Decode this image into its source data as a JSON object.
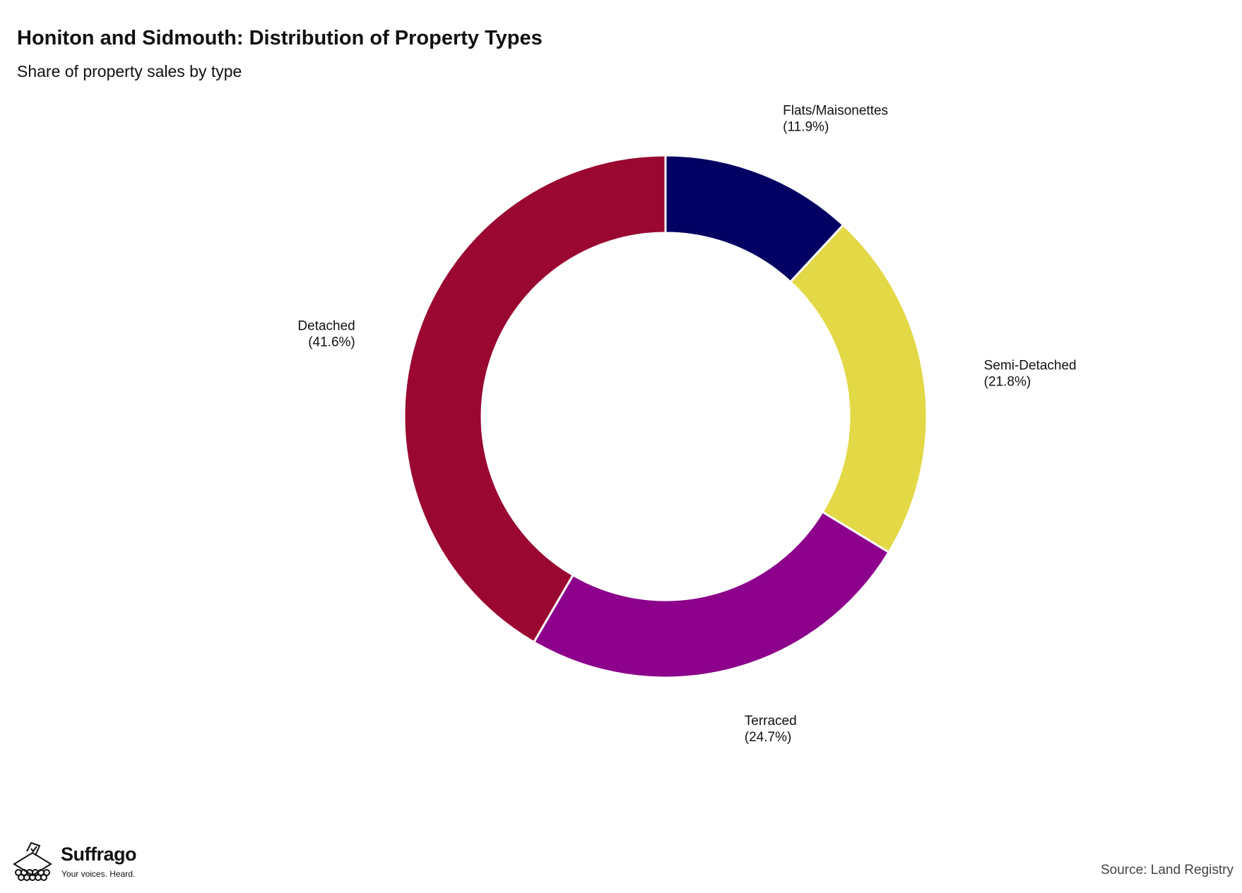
{
  "title": "Honiton and Sidmouth: Distribution of Property Types",
  "subtitle": "Share of property sales by type",
  "source": "Source: Land Registry",
  "brand": {
    "name": "Suffrago",
    "tagline": "Your voices. Heard."
  },
  "chart_data": {
    "type": "pie",
    "variant": "donut",
    "title": "Honiton and Sidmouth: Distribution of Property Types",
    "subtitle": "Share of property sales by type",
    "start_angle_deg": 0,
    "direction": "clockwise",
    "slices": [
      {
        "name": "Flats/Maisonettes",
        "value": 11.9,
        "label": "(11.9%)",
        "color": "#020062"
      },
      {
        "name": "Semi-Detached",
        "value": 21.8,
        "label": "(21.8%)",
        "color": "#E3D845"
      },
      {
        "name": "Terraced",
        "value": 24.7,
        "label": "(24.7%)",
        "color": "#8C008B"
      },
      {
        "name": "Detached",
        "value": 41.6,
        "label": "(41.6%)",
        "color": "#9A0831"
      }
    ]
  }
}
